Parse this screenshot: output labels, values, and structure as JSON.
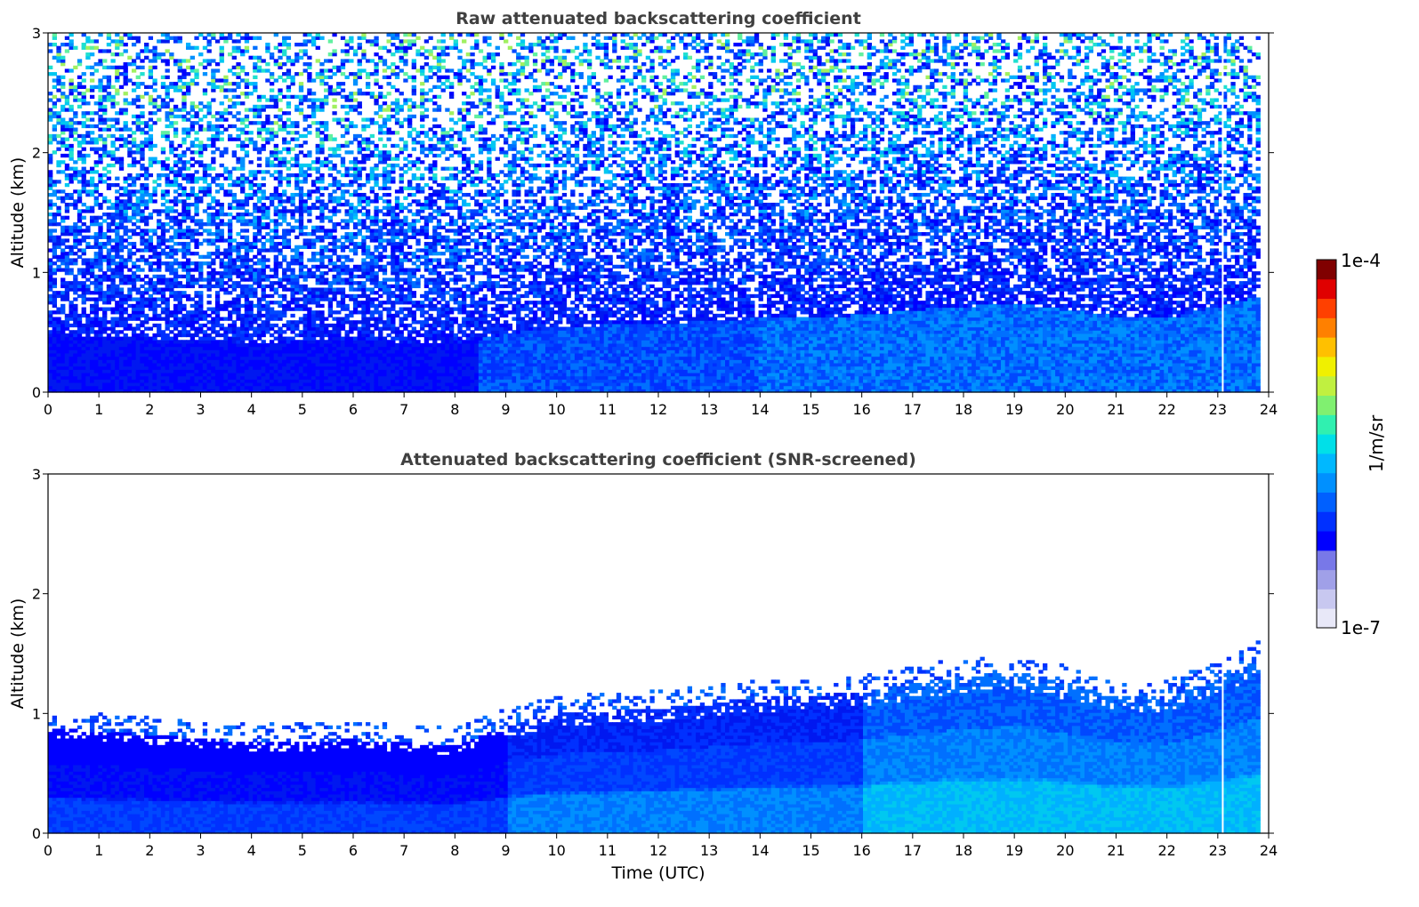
{
  "chart_data": [
    {
      "type": "heatmap",
      "title": "Raw attenuated backscattering coefficient",
      "xlabel": "",
      "ylabel": "Altitude (km)",
      "xlim": [
        0,
        24
      ],
      "ylim": [
        0,
        3
      ],
      "x_ticks": [
        "0",
        "1",
        "2",
        "3",
        "4",
        "5",
        "6",
        "7",
        "8",
        "9",
        "10",
        "11",
        "12",
        "13",
        "14",
        "15",
        "16",
        "17",
        "18",
        "19",
        "20",
        "21",
        "22",
        "23",
        "24"
      ],
      "y_ticks": [
        "0",
        "1",
        "2",
        "3"
      ],
      "data_end_hour": 23.83,
      "gap_hour": 23.08,
      "screened": false
    },
    {
      "type": "heatmap",
      "title": "Attenuated backscattering coefficient (SNR-screened)",
      "xlabel": "Time (UTC)",
      "ylabel": "Altitude (km)",
      "xlim": [
        0,
        24
      ],
      "ylim": [
        0,
        3
      ],
      "x_ticks": [
        "0",
        "1",
        "2",
        "3",
        "4",
        "5",
        "6",
        "7",
        "8",
        "9",
        "10",
        "11",
        "12",
        "13",
        "14",
        "15",
        "16",
        "17",
        "18",
        "19",
        "20",
        "21",
        "22",
        "23",
        "24"
      ],
      "y_ticks": [
        "0",
        "1",
        "2",
        "3"
      ],
      "data_end_hour": 23.83,
      "gap_hour": 23.08,
      "screened": true,
      "boundary_layer_top_km": {
        "hours": [
          0,
          2,
          4,
          6,
          8,
          8.7,
          10,
          12,
          14,
          16,
          17.5,
          19,
          20,
          21,
          22,
          23,
          23.8
        ],
        "values": [
          0.88,
          0.82,
          0.76,
          0.78,
          0.73,
          0.85,
          1.0,
          1.04,
          1.13,
          1.17,
          1.28,
          1.35,
          1.25,
          1.15,
          1.12,
          1.3,
          1.45
        ]
      }
    }
  ],
  "colorbar": {
    "label": "1/m/sr",
    "max_label": "1e-4",
    "min_label": "1e-7",
    "colors": [
      "#e8e8f8",
      "#c8c8f0",
      "#a0a0e8",
      "#7878e8",
      "#0000ff",
      "#0030ff",
      "#0060ff",
      "#0090ff",
      "#00b8ff",
      "#00e0e8",
      "#30f0b0",
      "#80f070",
      "#c0f040",
      "#f0f000",
      "#ffc000",
      "#ff8000",
      "#ff4000",
      "#e00000",
      "#800000"
    ]
  }
}
